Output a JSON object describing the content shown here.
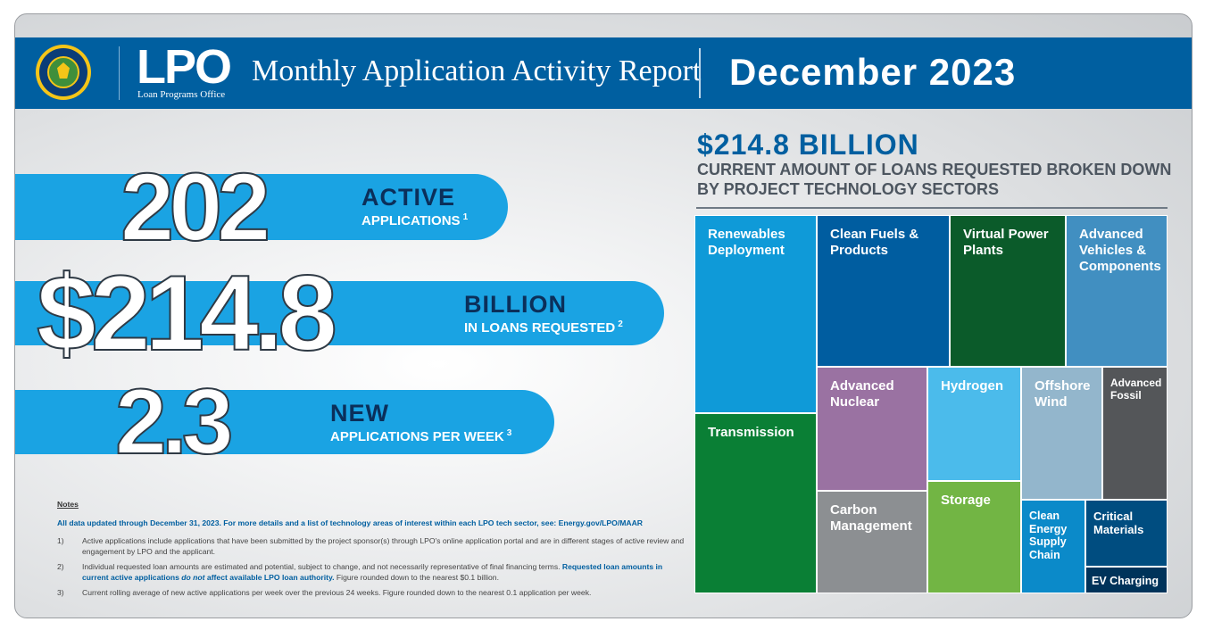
{
  "header": {
    "logo_text": "LPO",
    "logo_subtitle": "Loan Programs Office",
    "report_title": "Monthly Application Activity Report",
    "month": "December 2023"
  },
  "stats": [
    {
      "value": "202",
      "headline": "ACTIVE",
      "subtitle": "APPLICATIONS",
      "note_ref": "1"
    },
    {
      "value": "$214.8",
      "headline": "BILLION",
      "subtitle": "IN LOANS REQUESTED",
      "note_ref": "2"
    },
    {
      "value": "2.3",
      "headline": "NEW",
      "subtitle": "APPLICATIONS PER WEEK",
      "note_ref": "3"
    }
  ],
  "notes": {
    "title": "Notes",
    "intro": "All data updated through December 31, 2023. For more details and a list of technology areas of interest within each LPO tech sector, see: Energy.gov/LPO/MAAR",
    "items": [
      {
        "num": "1)",
        "text": "Active applications include applications that have been submitted by the project sponsor(s) through LPO's online application portal and are in different stages of active review and engagement by LPO and the applicant."
      },
      {
        "num": "2)",
        "text_a": "Individual requested loan amounts are estimated and potential, subject to change, and not necessarily representative of final financing terms. ",
        "emph_a": "Requested loan amounts in current active applications ",
        "emph_i": "do not",
        "emph_b": " affect available LPO loan authority.",
        "text_b": " Figure rounded down to the nearest $0.1 billion."
      },
      {
        "num": "3)",
        "text": "Current rolling average of new active applications per week over the previous 24 weeks. Figure rounded down to the nearest 0.1 application per week."
      }
    ]
  },
  "chart_data": {
    "type": "treemap",
    "title": "$214.8 BILLION",
    "subtitle": "CURRENT AMOUNT OF LOANS REQUESTED BROKEN DOWN BY PROJECT TECHNOLOGY SECTORS",
    "total": 214.8,
    "unit": "billion USD",
    "sectors": [
      {
        "name": "Renewables Deployment",
        "color": "#0f9ad8",
        "share": 0.131
      },
      {
        "name": "Transmission",
        "color": "#0a7f35",
        "share": 0.12
      },
      {
        "name": "Clean Fuels & Products",
        "color": "#005da0",
        "share": 0.122
      },
      {
        "name": "Virtual Power Plants",
        "color": "#0b5b2a",
        "share": 0.104
      },
      {
        "name": "Advanced Vehicles & Components",
        "color": "#418fc1",
        "share": 0.088
      },
      {
        "name": "Advanced Nuclear",
        "color": "#9a72a2",
        "share": 0.066
      },
      {
        "name": "Carbon Management",
        "color": "#8c8f92",
        "share": 0.056
      },
      {
        "name": "Hydrogen",
        "color": "#4bbbeb",
        "share": 0.054
      },
      {
        "name": "Storage",
        "color": "#72b544",
        "share": 0.054
      },
      {
        "name": "Offshore Wind",
        "color": "#93b6cc",
        "share": 0.064
      },
      {
        "name": "Advanced Fossil",
        "color": "#545659",
        "share": 0.052
      },
      {
        "name": "Clean Energy Supply Chain",
        "color": "#0b8ac9",
        "share": 0.041
      },
      {
        "name": "Critical Materials",
        "color": "#004d80",
        "share": 0.032
      },
      {
        "name": "EV Charging",
        "color": "#00335a",
        "share": 0.011
      }
    ]
  }
}
